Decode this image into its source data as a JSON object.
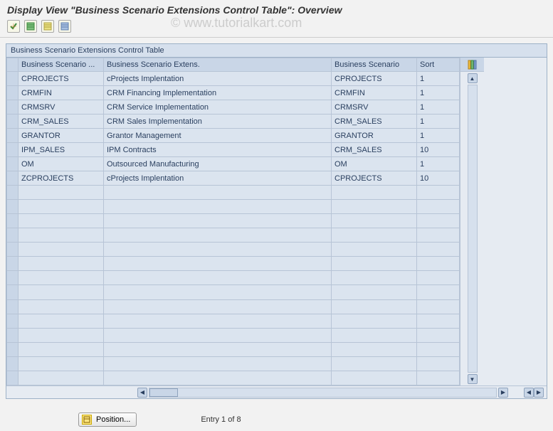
{
  "page_title": "Display View \"Business Scenario Extensions Control Table\": Overview",
  "watermark": "© www.tutorialkart.com",
  "panel_title": "Business Scenario Extensions Control Table",
  "columns": {
    "c1": "Business Scenario ...",
    "c2": "Business Scenario Extens.",
    "c3": "Business Scenario",
    "c4": "Sort"
  },
  "rows": [
    {
      "c1": "CPROJECTS",
      "c2": "cProjects Implentation",
      "c3": "CPROJECTS",
      "c4": "1"
    },
    {
      "c1": "CRMFIN",
      "c2": "CRM Financing Implementation",
      "c3": "CRMFIN",
      "c4": "1"
    },
    {
      "c1": "CRMSRV",
      "c2": "CRM Service Implementation",
      "c3": "CRMSRV",
      "c4": "1"
    },
    {
      "c1": "CRM_SALES",
      "c2": "CRM Sales Implementation",
      "c3": "CRM_SALES",
      "c4": "1"
    },
    {
      "c1": "GRANTOR",
      "c2": "Grantor Management",
      "c3": "GRANTOR",
      "c4": "1"
    },
    {
      "c1": "IPM_SALES",
      "c2": "IPM Contracts",
      "c3": "CRM_SALES",
      "c4": "10"
    },
    {
      "c1": "OM",
      "c2": "Outsourced Manufacturing",
      "c3": "OM",
      "c4": "1"
    },
    {
      "c1": "ZCPROJECTS",
      "c2": "cProjects Implentation",
      "c3": "CPROJECTS",
      "c4": "10"
    }
  ],
  "empty_rows": 14,
  "footer": {
    "position_button": "Position...",
    "entry_text": "Entry 1 of 8"
  },
  "colors": {
    "header_bg": "#c9d6e7",
    "cell_bg": "#dbe4ef",
    "border": "#b7c4d6",
    "panel_bg": "#e6ebf2",
    "text": "#2a3f5f"
  }
}
